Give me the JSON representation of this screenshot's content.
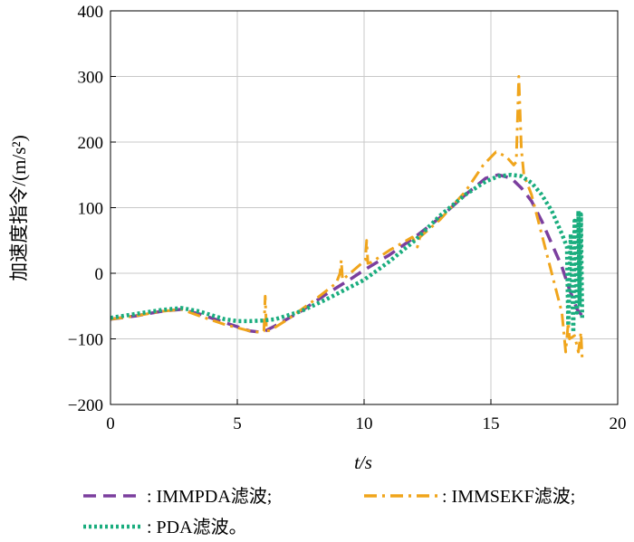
{
  "chart_data": {
    "type": "line",
    "xlabel": "t/s",
    "ylabel": "加速度指令/(m/s²)",
    "xlim": [
      0,
      20
    ],
    "ylim": [
      -200,
      400
    ],
    "xticks": [
      "0",
      "5",
      "10",
      "15",
      "20"
    ],
    "yticks": [
      "400",
      "300",
      "200",
      "100",
      "0",
      "−100",
      "−200"
    ],
    "grid": true,
    "legend_placement": "bottom",
    "series": [
      {
        "name": ": IMMPDA滤波;",
        "color": "#7b3f9e",
        "dash": "dashed",
        "x": [
          0,
          1,
          2,
          2.8,
          3.5,
          4.5,
          5.5,
          6.0,
          6.5,
          7.5,
          8.5,
          9.5,
          10.0,
          11.0,
          12.0,
          13.0,
          14.0,
          14.8,
          15.3,
          15.8,
          16.2,
          16.6,
          17.0,
          17.4,
          17.8,
          18.1,
          18.4,
          18.6
        ],
        "y": [
          -70,
          -65,
          -58,
          -55,
          -62,
          -75,
          -88,
          -90,
          -80,
          -58,
          -32,
          -8,
          5,
          28,
          55,
          85,
          120,
          145,
          150,
          145,
          130,
          110,
          80,
          45,
          10,
          -25,
          -55,
          -65
        ]
      },
      {
        "name": ": IMMSEKF滤波;",
        "color": "#f0a51c",
        "dash": "dashdot",
        "x": [
          0,
          1,
          2,
          2.8,
          3.5,
          4.5,
          5.5,
          5.9,
          6.05,
          6.1,
          6.15,
          6.3,
          7.0,
          8.0,
          8.9,
          9.05,
          9.1,
          9.15,
          9.3,
          9.9,
          10.05,
          10.1,
          10.15,
          10.3,
          11.0,
          11.9,
          12.1,
          12.2,
          13.0,
          14.0,
          14.7,
          15.2,
          15.6,
          15.9,
          16.0,
          16.1,
          16.2,
          16.3,
          16.6,
          17.0,
          17.4,
          17.8,
          17.95,
          18.05,
          18.1,
          18.3,
          18.45,
          18.55,
          18.6
        ],
        "y": [
          -70,
          -65,
          -58,
          -55,
          -65,
          -78,
          -88,
          -90,
          -88,
          -35,
          -88,
          -87,
          -70,
          -42,
          -15,
          0,
          20,
          -10,
          -5,
          15,
          20,
          50,
          15,
          17,
          35,
          55,
          40,
          55,
          82,
          125,
          165,
          185,
          178,
          165,
          170,
          300,
          190,
          150,
          120,
          60,
          0,
          -60,
          -120,
          -75,
          -100,
          -95,
          -120,
          -90,
          -130
        ]
      },
      {
        "name": ": PDA滤波。",
        "color": "#1aad7e",
        "dash": "dotted",
        "x": [
          0,
          1,
          2,
          2.8,
          3.5,
          4.5,
          5.0,
          5.5,
          6.0,
          6.5,
          7.5,
          8.5,
          9.5,
          10.0,
          11.0,
          12.0,
          13.0,
          14.0,
          14.8,
          15.3,
          15.8,
          16.2,
          16.6,
          17.0,
          17.4,
          17.8,
          18.0,
          18.05,
          18.15,
          18.25,
          18.3,
          18.4,
          18.45,
          18.5,
          18.55,
          18.6
        ],
        "y": [
          -68,
          -62,
          -56,
          -53,
          -58,
          -70,
          -73,
          -73,
          -72,
          -70,
          -58,
          -40,
          -20,
          -10,
          18,
          50,
          88,
          120,
          140,
          148,
          150,
          148,
          138,
          120,
          95,
          60,
          40,
          -80,
          60,
          -90,
          80,
          -60,
          95,
          -50,
          90,
          -70
        ]
      }
    ]
  }
}
